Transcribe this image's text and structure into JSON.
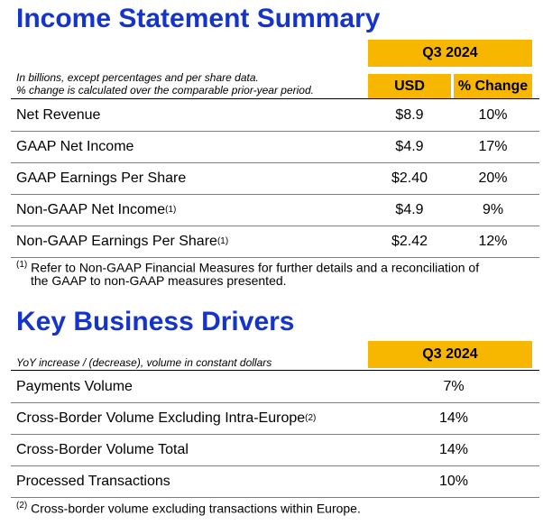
{
  "income_statement": {
    "title": "Income Statement Summary",
    "period": "Q3 2024",
    "notes": [
      "In billions, except percentages and per share data.",
      "% change is calculated over the comparable prior-year period."
    ],
    "columns": [
      "USD",
      "% Change"
    ],
    "rows": [
      {
        "label": "Net Revenue",
        "usd": "$8.9",
        "change": "10%"
      },
      {
        "label": "GAAP Net Income",
        "usd": "$4.9",
        "change": "17%"
      },
      {
        "label": "GAAP Earnings Per Share",
        "usd": "$2.40",
        "change": "20%"
      },
      {
        "label": "Non-GAAP Net Income",
        "ref": "(1)",
        "usd": "$4.9",
        "change": "9%"
      },
      {
        "label": "Non-GAAP Earnings Per Share",
        "ref": "(1)",
        "usd": "$2.42",
        "change": "12%"
      }
    ],
    "footnote": {
      "ref": "(1)",
      "lines": [
        "Refer to Non-GAAP Financial Measures for further details and a reconciliation of",
        "the GAAP to non-GAAP measures presented."
      ]
    }
  },
  "key_business_drivers": {
    "title": "Key Business Drivers",
    "period": "Q3 2024",
    "note": "YoY increase / (decrease), volume in constant dollars",
    "rows": [
      {
        "label": "Payments Volume",
        "value": "7%"
      },
      {
        "label": "Cross-Border Volume Excluding Intra-Europe",
        "ref": "(2)",
        "value": "14%"
      },
      {
        "label": "Cross-Border Volume Total",
        "value": "14%"
      },
      {
        "label": "Processed Transactions",
        "value": "10%"
      }
    ],
    "footnote": {
      "ref": "(2)",
      "lines": [
        "Cross-border volume excluding transactions within Europe."
      ]
    }
  }
}
